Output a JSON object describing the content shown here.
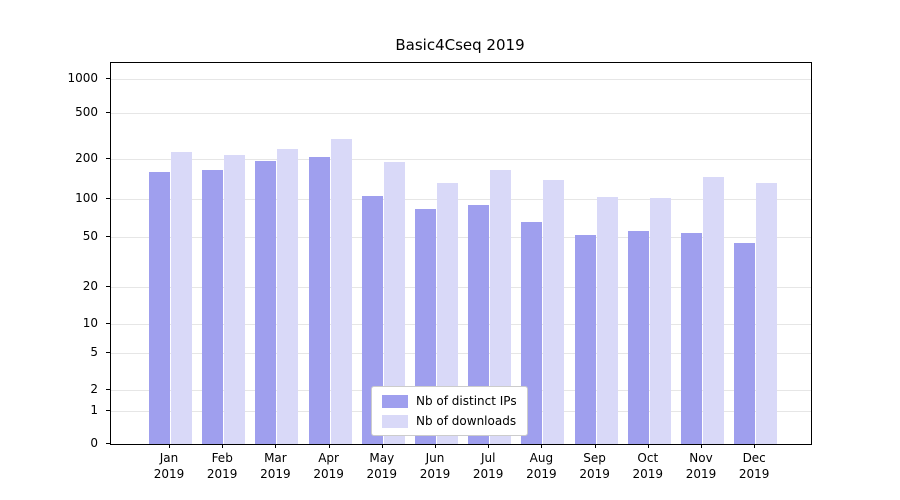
{
  "title": "Basic4Cseq 2019",
  "colors": {
    "distinct_ips": "#9f9fee",
    "downloads": "#d9d9f8",
    "grid": "#e6e6e6",
    "axis": "#000000",
    "legend_border": "#cccccc"
  },
  "chart_data": {
    "type": "bar",
    "title": "Basic4Cseq 2019",
    "categories": [
      "Jan 2019",
      "Feb 2019",
      "Mar 2019",
      "Apr 2019",
      "May 2019",
      "Jun 2019",
      "Jul 2019",
      "Aug 2019",
      "Sep 2019",
      "Oct 2019",
      "Nov 2019",
      "Dec 2019"
    ],
    "series": [
      {
        "name": "Nb of distinct IPs",
        "color": "#9f9fee",
        "values": [
          160,
          165,
          193,
          210,
          105,
          84,
          89,
          66,
          52,
          56,
          54,
          45
        ]
      },
      {
        "name": "Nb of downloads",
        "color": "#d9d9f8",
        "values": [
          230,
          218,
          242,
          300,
          190,
          133,
          165,
          140,
          104,
          102,
          147,
          133
        ]
      }
    ],
    "yscale": "symlog",
    "yticks": [
      0,
      1,
      2,
      5,
      10,
      20,
      50,
      100,
      200,
      500,
      1000
    ],
    "ylim": [
      0,
      1000
    ],
    "xlabel": "",
    "ylabel": "",
    "grid": true,
    "legend_position": "lower center"
  }
}
